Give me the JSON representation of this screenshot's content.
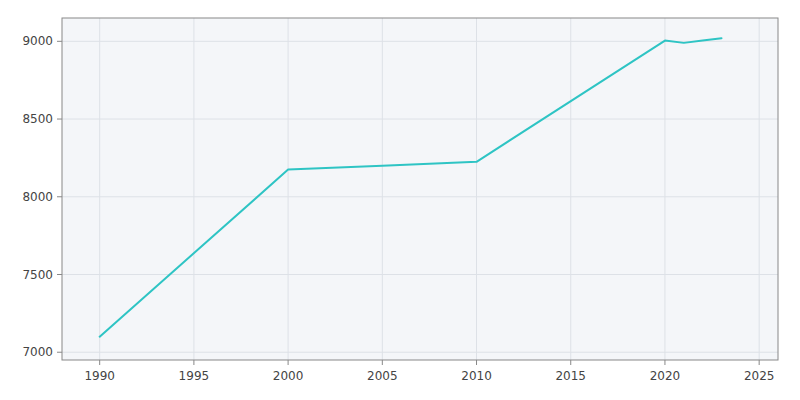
{
  "chart_data": {
    "type": "line",
    "x": [
      1990,
      2000,
      2005,
      2010,
      2020,
      2021,
      2022,
      2023
    ],
    "values": [
      7100,
      8175,
      8200,
      8225,
      9005,
      8990,
      9005,
      9020
    ],
    "color": "#2ec4c4",
    "xlim": [
      1988,
      2026
    ],
    "ylim": [
      6950,
      9150
    ],
    "xticks": [
      1990,
      1995,
      2000,
      2005,
      2010,
      2015,
      2020,
      2025
    ],
    "yticks": [
      7000,
      7500,
      8000,
      8500,
      9000
    ],
    "grid": true
  }
}
